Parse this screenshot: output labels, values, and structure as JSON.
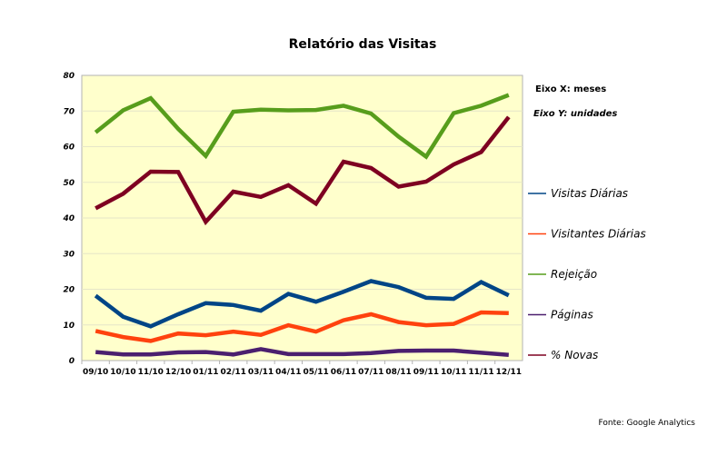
{
  "chart_data": {
    "type": "line",
    "title": "Relatório das Visitas",
    "x_note": "Eixo X: meses",
    "y_note": "Eixo Y: unidades",
    "source": "Fonte: Google Analytics",
    "categories": [
      "09/10",
      "10/10",
      "11/10",
      "12/10",
      "01/11",
      "02/11",
      "03/11",
      "04/11",
      "05/11",
      "06/11",
      "07/11",
      "08/11",
      "09/11",
      "10/11",
      "11/11",
      "12/11"
    ],
    "ylim": [
      0,
      80
    ],
    "yticks": [
      0,
      10,
      20,
      30,
      40,
      50,
      60,
      70,
      80
    ],
    "grid": true,
    "background": "#ffffcc",
    "legend_position": "right",
    "series": [
      {
        "name": "Visitas Diárias",
        "color": "#004586",
        "values": [
          18.2,
          12.3,
          9.6,
          13,
          16.1,
          15.6,
          14,
          18.7,
          16.5,
          19.3,
          22.3,
          20.6,
          17.6,
          17.3,
          22,
          18.3
        ]
      },
      {
        "name": "Visitantes Diárias",
        "color": "#ff420e",
        "values": [
          8.3,
          6.6,
          5.5,
          7.6,
          7.1,
          8.1,
          7.2,
          9.9,
          8.1,
          11.3,
          13,
          10.8,
          9.9,
          10.3,
          13.5,
          13.3
        ]
      },
      {
        "name": "Rejeição",
        "color": "#579d1c",
        "values": [
          64,
          70.2,
          73.6,
          65,
          57.4,
          69.8,
          70.4,
          70.2,
          70.3,
          71.5,
          69.3,
          62.8,
          57.2,
          69.4,
          71.5,
          74.5
        ]
      },
      {
        "name": "Páginas",
        "color": "#4b1f6f",
        "values": [
          2.4,
          1.7,
          1.7,
          2.3,
          2.4,
          1.7,
          3.2,
          1.8,
          1.8,
          1.8,
          2.1,
          2.7,
          2.8,
          2.8,
          2.2,
          1.6
        ]
      },
      {
        "name": "% Novas",
        "color": "#7e0021",
        "values": [
          42.7,
          46.8,
          53,
          52.9,
          38.9,
          47.4,
          45.9,
          49.2,
          44,
          55.8,
          54,
          48.8,
          50.2,
          55,
          58.5,
          68.3
        ]
      }
    ]
  }
}
